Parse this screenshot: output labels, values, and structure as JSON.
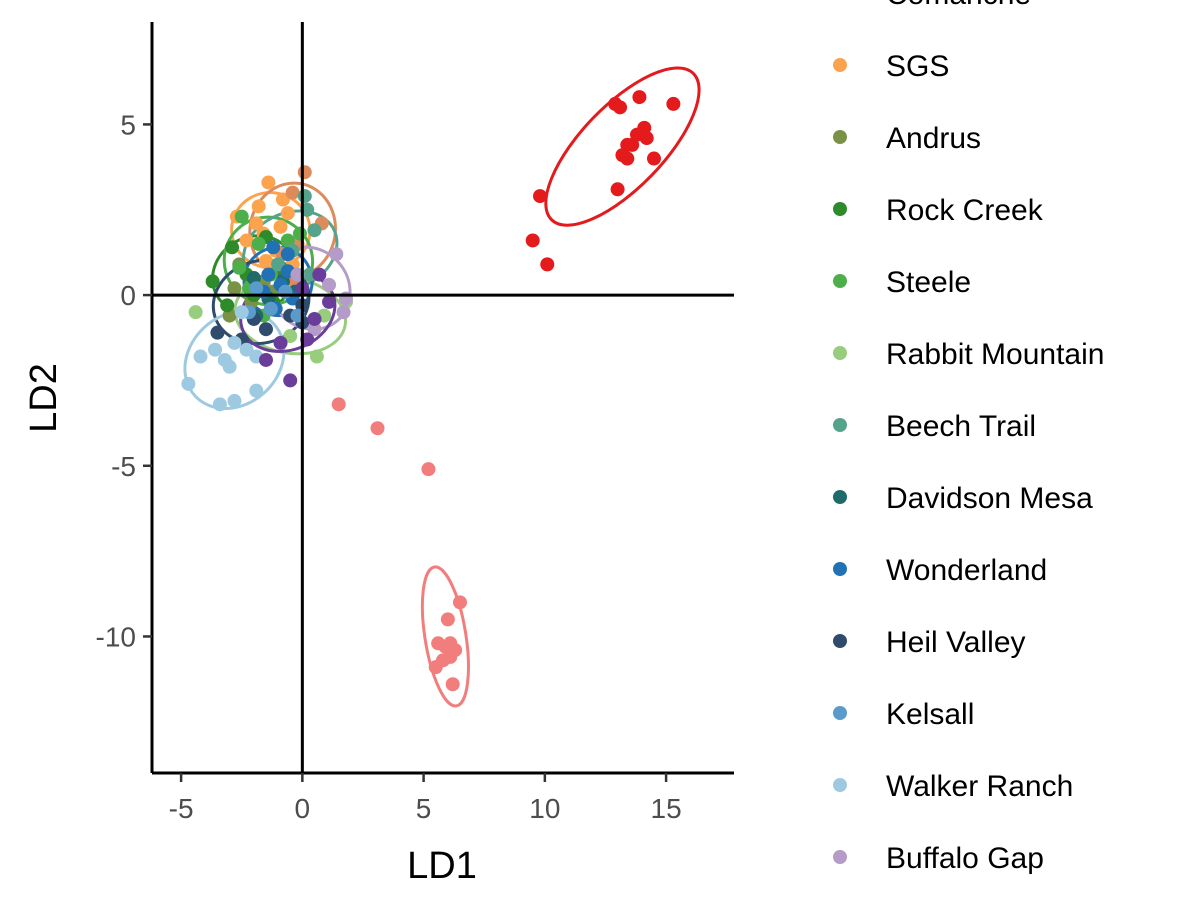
{
  "chart_data": {
    "type": "scatter",
    "xlabel": "LD1",
    "ylabel": "LD2",
    "xlim": [
      -6.2,
      17.8
    ],
    "ylim": [
      -14,
      8
    ],
    "x_ticks": [
      -5,
      0,
      5,
      10,
      15
    ],
    "y_ticks": [
      5,
      0,
      -5,
      -10
    ],
    "x_tick_labels": [
      "-5",
      "0",
      "5",
      "10",
      "15"
    ],
    "y_tick_labels": [
      "5",
      "0",
      "-5",
      "-10"
    ],
    "reference_lines": {
      "x": 0,
      "y": 0
    },
    "grid": false,
    "legend_position": "right",
    "series": [
      {
        "name": "Comanche",
        "color": "#e41a1c",
        "points": [
          [
            12.9,
            5.6
          ],
          [
            13.1,
            5.5
          ],
          [
            13.9,
            5.8
          ],
          [
            15.3,
            5.6
          ],
          [
            13.8,
            4.7
          ],
          [
            14.1,
            4.9
          ],
          [
            14.2,
            4.6
          ],
          [
            13.4,
            4.4
          ],
          [
            13.6,
            4.4
          ],
          [
            13.2,
            4.1
          ],
          [
            13.4,
            4.0
          ],
          [
            14.5,
            4.0
          ],
          [
            13.0,
            3.1
          ],
          [
            9.8,
            2.9
          ],
          [
            9.5,
            1.6
          ],
          [
            10.1,
            0.9
          ]
        ],
        "ellipse": {
          "cx": 13.2,
          "cy": 4.35,
          "rx": 4.2,
          "ry": 1.2,
          "angle_deg": 46
        }
      },
      {
        "name": "",
        "color": "#f27d7d",
        "points": [
          [
            1.5,
            -3.2
          ],
          [
            3.1,
            -3.9
          ],
          [
            5.2,
            -5.1
          ],
          [
            6.5,
            -9.0
          ],
          [
            6.0,
            -9.5
          ],
          [
            5.6,
            -10.2
          ],
          [
            6.1,
            -10.2
          ],
          [
            5.9,
            -10.3
          ],
          [
            6.3,
            -10.4
          ],
          [
            6.1,
            -10.6
          ],
          [
            5.8,
            -10.7
          ],
          [
            5.5,
            -10.9
          ],
          [
            6.2,
            -11.4
          ]
        ],
        "ellipse": {
          "cx": 5.9,
          "cy": -10.0,
          "rx": 2.9,
          "ry": 0.6,
          "angle_deg": -81
        }
      },
      {
        "name": "SGS",
        "color": "#fca34d",
        "points": [
          [
            -1.4,
            3.3
          ],
          [
            -0.8,
            2.8
          ],
          [
            -2.7,
            2.3
          ],
          [
            -1.9,
            2.1
          ],
          [
            -0.6,
            2.4
          ],
          [
            -1.6,
            1.8
          ],
          [
            -1.1,
            1.3
          ],
          [
            -0.4,
            0.9
          ],
          [
            -2.3,
            1.6
          ],
          [
            -1.5,
            1.0
          ],
          [
            -0.9,
            2.0
          ],
          [
            -1.8,
            2.6
          ]
        ],
        "ellipse": {
          "cx": -1.3,
          "cy": 1.9,
          "rx": 1.55,
          "ry": 1.15,
          "angle_deg": 80
        }
      },
      {
        "name": "",
        "color": "#de8b5c",
        "points": [
          [
            0.1,
            3.6
          ],
          [
            -0.4,
            3.0
          ],
          [
            0.8,
            2.1
          ],
          [
            -0.2,
            1.5
          ],
          [
            -0.8,
            1.2
          ],
          [
            -0.3,
            0.4
          ]
        ],
        "ellipse": {
          "cx": -0.4,
          "cy": 1.9,
          "rx": 1.95,
          "ry": 1.25,
          "angle_deg": 80
        }
      },
      {
        "name": "Andrus",
        "color": "#7a9245",
        "points": [
          [
            -3.0,
            -0.6
          ],
          [
            -2.1,
            -0.2
          ],
          [
            -1.6,
            0.4
          ],
          [
            -2.6,
            0.9
          ],
          [
            -1.2,
            0.1
          ],
          [
            -2.8,
            0.2
          ]
        ]
      },
      {
        "name": "Rock Creek",
        "color": "#2e8b2a",
        "points": [
          [
            -3.7,
            0.4
          ],
          [
            -2.9,
            1.4
          ],
          [
            -2.3,
            0.6
          ],
          [
            -1.5,
            1.7
          ],
          [
            -0.9,
            0.8
          ],
          [
            -2.0,
            0.0
          ],
          [
            -3.1,
            -0.3
          ],
          [
            -1.2,
            -0.2
          ]
        ],
        "ellipse": {
          "cx": -2.0,
          "cy": 0.6,
          "rx": 1.75,
          "ry": 1.1,
          "angle_deg": 30
        }
      },
      {
        "name": "Steele",
        "color": "#4daf4a",
        "points": [
          [
            -2.5,
            2.3
          ],
          [
            -1.8,
            1.5
          ],
          [
            -1.3,
            0.6
          ],
          [
            -2.2,
            0.2
          ],
          [
            -0.6,
            1.6
          ],
          [
            -0.1,
            1.8
          ],
          [
            -1.6,
            -0.6
          ],
          [
            -2.6,
            0.8
          ]
        ],
        "ellipse": {
          "cx": -1.4,
          "cy": 1.0,
          "rx": 1.8,
          "ry": 1.3,
          "angle_deg": 60
        }
      },
      {
        "name": "Rabbit Mountain",
        "color": "#98cd7e",
        "points": [
          [
            -4.4,
            -0.5
          ],
          [
            0.6,
            -1.8
          ],
          [
            1.8,
            -0.2
          ],
          [
            -0.5,
            -1.2
          ],
          [
            0.9,
            -0.6
          ]
        ],
        "ellipse": {
          "cx": -0.5,
          "cy": -0.6,
          "rx": 2.3,
          "ry": 1.1,
          "angle_deg": -10
        }
      },
      {
        "name": "Beech Trail",
        "color": "#56a38b",
        "points": [
          [
            0.1,
            2.9
          ],
          [
            0.2,
            2.5
          ],
          [
            0.5,
            1.9
          ],
          [
            -0.4,
            1.3
          ],
          [
            0.3,
            0.6
          ],
          [
            -1.0,
            0.9
          ]
        ],
        "ellipse": {
          "cx": -0.5,
          "cy": 1.3,
          "rx": 2.0,
          "ry": 1.1,
          "angle_deg": 25
        }
      },
      {
        "name": "Davidson Mesa",
        "color": "#1f6b6b",
        "points": [
          [
            -2.0,
            0.5
          ],
          [
            -1.4,
            -0.1
          ],
          [
            -0.8,
            0.4
          ],
          [
            -1.9,
            -0.6
          ],
          [
            -0.3,
            0.1
          ]
        ]
      },
      {
        "name": "Wonderland",
        "color": "#2171b5",
        "points": [
          [
            -1.2,
            1.4
          ],
          [
            -0.6,
            1.2
          ],
          [
            -1.4,
            0.6
          ],
          [
            -0.9,
            0.3
          ],
          [
            -1.6,
            0.1
          ],
          [
            -0.4,
            -0.1
          ],
          [
            -1.1,
            -0.4
          ],
          [
            -0.6,
            0.7
          ]
        ],
        "ellipse": {
          "cx": -1.0,
          "cy": 0.4,
          "rx": 1.4,
          "ry": 1.0,
          "angle_deg": 30
        }
      },
      {
        "name": "Heil Valley",
        "color": "#2f4b6e",
        "points": [
          [
            -3.5,
            -1.1
          ],
          [
            -2.5,
            -1.3
          ],
          [
            -1.5,
            -1.0
          ],
          [
            -0.5,
            -0.6
          ],
          [
            0.0,
            -0.8
          ],
          [
            -2.0,
            -0.7
          ],
          [
            0.0,
            -0.3
          ]
        ],
        "ellipse": {
          "cx": -1.7,
          "cy": -0.2,
          "rx": 2.0,
          "ry": 1.2,
          "angle_deg": 18
        }
      },
      {
        "name": "Kelsall",
        "color": "#5b9bcb",
        "points": [
          [
            -1.9,
            0.2
          ],
          [
            -1.3,
            -0.4
          ],
          [
            -0.7,
            0.1
          ],
          [
            -2.2,
            -0.5
          ],
          [
            -0.2,
            -0.6
          ]
        ]
      },
      {
        "name": "Walker Ranch",
        "color": "#9ecae1",
        "points": [
          [
            -4.7,
            -2.6
          ],
          [
            -4.2,
            -1.8
          ],
          [
            -3.6,
            -1.6
          ],
          [
            -3.2,
            -1.9
          ],
          [
            -2.8,
            -1.4
          ],
          [
            -2.3,
            -1.6
          ],
          [
            -1.9,
            -1.8
          ],
          [
            -3.4,
            -3.2
          ],
          [
            -2.8,
            -3.1
          ],
          [
            -1.9,
            -2.8
          ],
          [
            -3.0,
            -2.1
          ],
          [
            -2.5,
            -0.5
          ]
        ],
        "ellipse": {
          "cx": -2.8,
          "cy": -1.9,
          "rx": 2.2,
          "ry": 1.3,
          "angle_deg": 42
        }
      },
      {
        "name": "Buffalo Gap",
        "color": "#b49bc8",
        "points": [
          [
            1.4,
            1.2
          ],
          [
            1.7,
            -0.5
          ],
          [
            1.1,
            0.3
          ],
          [
            0.5,
            -1.0
          ],
          [
            1.8,
            -0.1
          ],
          [
            -0.2,
            0.6
          ]
        ],
        "ellipse": {
          "cx": 0.3,
          "cy": 0.2,
          "rx": 1.6,
          "ry": 1.25,
          "angle_deg": 40
        }
      },
      {
        "name": "",
        "color": "#6a3d9a",
        "points": [
          [
            -0.5,
            -2.5
          ],
          [
            -1.5,
            -1.9
          ],
          [
            -0.9,
            -1.4
          ],
          [
            0.2,
            -1.3
          ],
          [
            0.5,
            -0.7
          ],
          [
            0.7,
            0.6
          ],
          [
            1.1,
            -0.2
          ],
          [
            0.0,
            0.2
          ]
        ],
        "ellipse": {
          "cx": -0.6,
          "cy": -0.5,
          "rx": 2.0,
          "ry": 1.1,
          "angle_deg": 22
        }
      }
    ],
    "legend": [
      {
        "label": "Comanche",
        "color": "#e41a1c"
      },
      {
        "label": "SGS",
        "color": "#fca34d"
      },
      {
        "label": "Andrus",
        "color": "#7a9245"
      },
      {
        "label": "Rock Creek",
        "color": "#2e8b2a"
      },
      {
        "label": "Steele",
        "color": "#4daf4a"
      },
      {
        "label": "Rabbit Mountain",
        "color": "#98cd7e"
      },
      {
        "label": "Beech Trail",
        "color": "#56a38b"
      },
      {
        "label": "Davidson Mesa",
        "color": "#1f6b6b"
      },
      {
        "label": "Wonderland",
        "color": "#2171b5"
      },
      {
        "label": "Heil Valley",
        "color": "#2f4b6e"
      },
      {
        "label": "Kelsall",
        "color": "#5b9bcb"
      },
      {
        "label": "Walker Ranch",
        "color": "#9ecae1"
      },
      {
        "label": "Buffalo Gap",
        "color": "#b49bc8"
      }
    ]
  }
}
